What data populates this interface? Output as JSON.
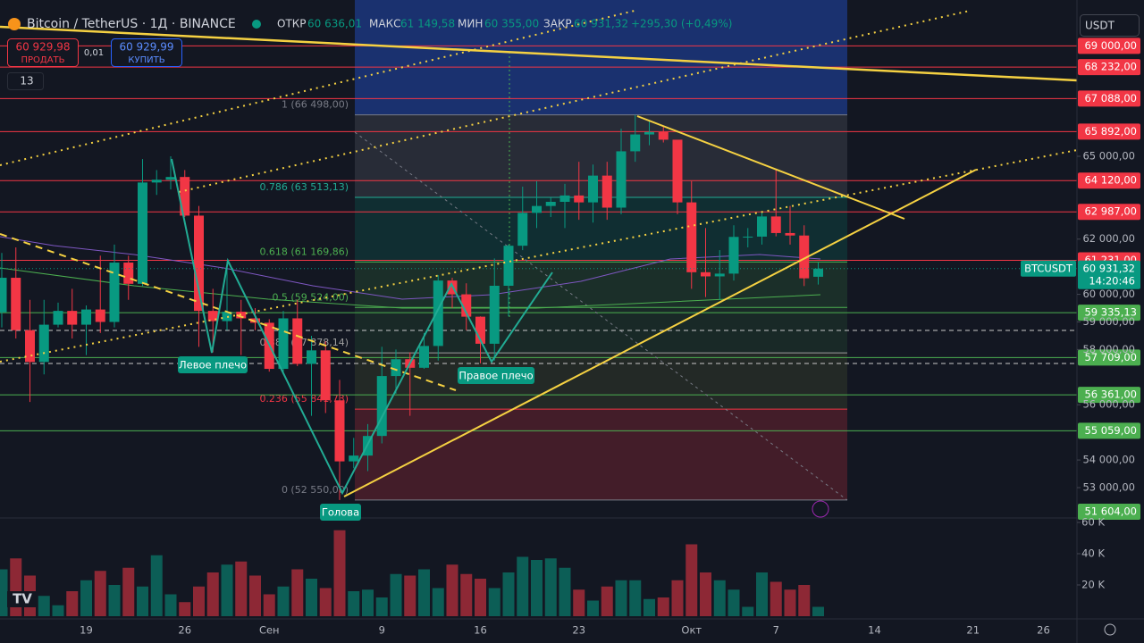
{
  "ui": {
    "symbol": "Bitcoin / TetherUS · 1Д · BINANCE",
    "open_label": "ОТКР",
    "open": "60 636,01",
    "high_label": "МАКС",
    "high": "61 149,58",
    "low_label": "МИН",
    "low": "60 355,00",
    "close_label": "ЗАКР",
    "close": "60 931,32",
    "change": "+295,30 (+0,49%)",
    "sell_price": "60 929,98",
    "sell": "ПРОДАТЬ",
    "spread": "0,01",
    "buy_price": "60 929,99",
    "buy": "КУПИТЬ",
    "indicators": "13",
    "currency": "USDT",
    "ticker": "BTCUSDT",
    "countdown": "14:20:46",
    "left_shoulder": "Левое плечо",
    "head": "Голова",
    "right_shoulder": "Правое плечо"
  },
  "chart_data": {
    "type": "candlestick",
    "categories": [
      null,
      null,
      null,
      null,
      null,
      null,
      "19",
      null,
      null,
      null,
      null,
      null,
      null,
      "26",
      null,
      null,
      null,
      null,
      null,
      "Сен",
      null,
      null,
      null,
      null,
      null,
      null,
      null,
      "9",
      null,
      null,
      null,
      null,
      null,
      null,
      "16",
      null,
      null,
      null,
      null,
      null,
      null,
      "23",
      null,
      null,
      null,
      null,
      null,
      null,
      null,
      "Окт",
      null,
      null,
      null,
      null,
      null,
      "7",
      null,
      null,
      null,
      null,
      null,
      null,
      "14",
      null,
      null,
      null,
      null,
      null,
      null,
      "21",
      null,
      null,
      null,
      null,
      "26"
    ],
    "open": [
      59350,
      60600,
      58700,
      57550,
      58900,
      59400,
      58900,
      59450,
      59000,
      61150,
      60380,
      64050,
      64150,
      64250,
      62850,
      59400,
      59030,
      59370,
      59130,
      58970,
      57300,
      59130,
      57480,
      57970,
      56160,
      53950,
      54160,
      54870,
      57040,
      57650,
      57340,
      58130,
      60500,
      60000,
      59190,
      58210,
      60310,
      61760,
      62950,
      63200,
      63350,
      63580,
      63330,
      64300,
      63140,
      65180,
      65790,
      65880,
      65600,
      63330,
      60800,
      60650,
      60750,
      62080,
      62090,
      62820,
      62220,
      62130,
      60636.01,
      null,
      null,
      null,
      null,
      null,
      null,
      null,
      null,
      null,
      null,
      null,
      null,
      null,
      null,
      null,
      null
    ],
    "high": [
      61500,
      61700,
      59800,
      59800,
      59700,
      60200,
      59600,
      61400,
      61800,
      61400,
      64900,
      64500,
      65000,
      64500,
      63200,
      60200,
      61200,
      59800,
      59500,
      59100,
      59400,
      59800,
      58500,
      58300,
      56900,
      54800,
      55300,
      58100,
      58000,
      57900,
      58600,
      60700,
      60600,
      60400,
      59200,
      61300,
      61800,
      63900,
      64100,
      63500,
      64000,
      64800,
      64700,
      64800,
      66000,
      66498,
      66300,
      66100,
      65600,
      64100,
      62400,
      61600,
      62500,
      62400,
      63000,
      64500,
      63200,
      62500,
      61149.58,
      null,
      null,
      null,
      null,
      null,
      null,
      null,
      null,
      null,
      null,
      null,
      null,
      null,
      null,
      null,
      null
    ],
    "low": [
      58800,
      58400,
      56100,
      57100,
      58800,
      58400,
      57800,
      58600,
      58800,
      59800,
      60300,
      63600,
      63800,
      62800,
      58100,
      57900,
      58700,
      57800,
      58700,
      57200,
      57100,
      57400,
      55600,
      55700,
      52550,
      53700,
      53600,
      54600,
      56400,
      55600,
      57300,
      57600,
      59500,
      58700,
      57500,
      57600,
      59200,
      61600,
      62400,
      62800,
      62400,
      62700,
      62600,
      62700,
      62900,
      64800,
      65400,
      65500,
      62900,
      60200,
      59900,
      59800,
      60500,
      61700,
      61800,
      62100,
      61800,
      60300,
      60355,
      null,
      null,
      null,
      null,
      null,
      null,
      null,
      null,
      null,
      null,
      null,
      null,
      null,
      null,
      null,
      null
    ],
    "close": [
      60600,
      58700,
      57550,
      58900,
      59400,
      58900,
      59450,
      59000,
      61150,
      60380,
      64050,
      64150,
      64250,
      62850,
      59400,
      59030,
      59370,
      59130,
      58970,
      57300,
      59130,
      57480,
      57970,
      56160,
      53950,
      54160,
      54870,
      57040,
      57650,
      57340,
      58130,
      60500,
      60000,
      59190,
      58210,
      60310,
      61760,
      62950,
      63200,
      63350,
      63580,
      63330,
      64300,
      63140,
      65180,
      65790,
      65880,
      65600,
      63330,
      60800,
      60650,
      60750,
      62080,
      62090,
      62820,
      62220,
      62130,
      60580,
      60931.32,
      null,
      null,
      null,
      null,
      null,
      null,
      null,
      null,
      null,
      null,
      null,
      null,
      null,
      null,
      null,
      null
    ],
    "volume": [
      30000,
      37000,
      26000,
      13000,
      7000,
      16000,
      23000,
      29000,
      20000,
      31000,
      19000,
      39000,
      14000,
      9000,
      19000,
      28000,
      33000,
      35000,
      26000,
      14000,
      19000,
      30000,
      24000,
      18000,
      55000,
      16000,
      17000,
      12000,
      27000,
      26000,
      30000,
      18000,
      33000,
      27000,
      24000,
      18000,
      28000,
      38000,
      36000,
      37000,
      31000,
      17000,
      10000,
      19000,
      23000,
      23000,
      11000,
      12000,
      23000,
      46000,
      28000,
      23000,
      17000,
      6000,
      28000,
      22000,
      17000,
      20000,
      6000,
      null,
      null,
      null,
      null,
      null,
      null,
      null,
      null,
      null,
      null,
      null,
      null,
      null,
      null,
      null,
      null
    ],
    "up_color": "#089981",
    "down_color": "#f23645",
    "ylim": [
      51900,
      70660
    ],
    "yticks": [
      {
        "value": 65000,
        "label": "65 000,00"
      },
      {
        "value": 62000,
        "label": "62 000,00"
      },
      {
        "value": 60000,
        "label": "60 000,00"
      },
      {
        "value": 59000,
        "label": "59 000,00"
      },
      {
        "value": 58000,
        "label": "58 000,00"
      },
      {
        "value": 56000,
        "label": "56 000,00"
      },
      {
        "value": 54000,
        "label": "54 000,00"
      },
      {
        "value": 53000,
        "label": "53 000,00"
      }
    ],
    "volume_ylim": [
      0,
      60000
    ],
    "volume_ticks": [
      {
        "value": 20000,
        "label": "20 K"
      },
      {
        "value": 40000,
        "label": "40 K"
      },
      {
        "value": 60000,
        "label": "60 K"
      }
    ],
    "last_price": {
      "value": 60931.32,
      "label": "60 931,32"
    },
    "levels": [
      {
        "value": 69000,
        "label": "69 000,00",
        "color": "#f23645"
      },
      {
        "value": 68232,
        "label": "68 232,00",
        "color": "#f23645"
      },
      {
        "value": 67088,
        "label": "67 088,00",
        "color": "#f23645"
      },
      {
        "value": 65892,
        "label": "65 892,00",
        "color": "#f23645"
      },
      {
        "value": 64120,
        "label": "64 120,00",
        "color": "#f23645"
      },
      {
        "value": 62987,
        "label": "62 987,00",
        "color": "#f23645"
      },
      {
        "value": 61231,
        "label": "61 231,00",
        "color": "#f23645"
      },
      {
        "value": 59335.13,
        "label": "59 335,13",
        "color": "#4caf50"
      },
      {
        "value": 57709,
        "label": "57 709,00",
        "color": "#4caf50"
      },
      {
        "value": 56361,
        "label": "56 361,00",
        "color": "#4caf50"
      },
      {
        "value": 55059,
        "label": "55 059,00",
        "color": "#4caf50"
      },
      {
        "value": 51604,
        "label": "51 604,00",
        "color": "#4caf50"
      }
    ],
    "fib": [
      {
        "value": 66498,
        "label": "1 (66 498,00)"
      },
      {
        "value": 63513.13,
        "label": "0.786 (63 513,13)"
      },
      {
        "value": 61169.86,
        "label": "0.618 (61 169,86)"
      },
      {
        "value": 59524,
        "label": "0.5 (59 524,00)"
      },
      {
        "value": 57878.14,
        "label": "0.382 (57 878,14)"
      },
      {
        "value": 55841.73,
        "label": "0.236 (55 841,73)"
      },
      {
        "value": 52550,
        "label": "0 (52 550,00)"
      }
    ]
  }
}
